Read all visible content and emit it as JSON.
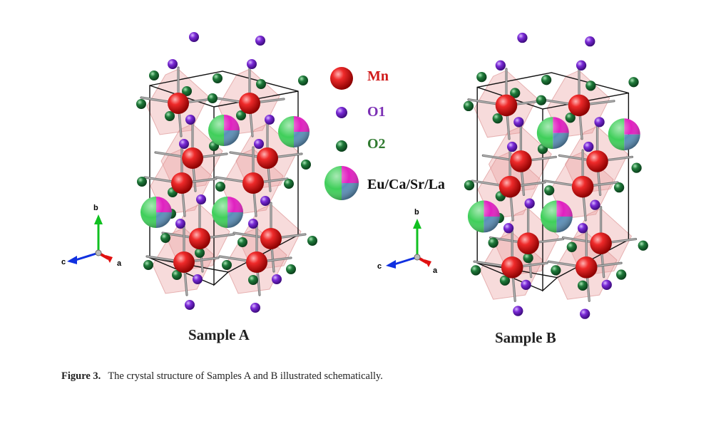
{
  "legend": {
    "mn": "Mn",
    "o1": "O1",
    "o2": "O2",
    "eu": "Eu/Ca/Sr/La"
  },
  "panels": {
    "a": {
      "label": "Sample A"
    },
    "b": {
      "label": "Sample B"
    }
  },
  "axes": {
    "b": "b",
    "c": "c",
    "a": "a"
  },
  "caption": {
    "number": "Figure 3.",
    "text": "The crystal structure of Samples A and B illustrated schematically."
  },
  "colors": {
    "mn": "#e01515",
    "o1": "#7a2ad6",
    "o2": "#1f7a3a",
    "octahedron": "#eaa0a0",
    "cell": "#111111"
  }
}
